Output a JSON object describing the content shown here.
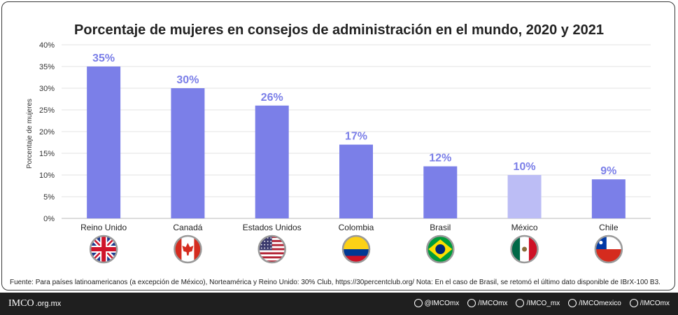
{
  "title": "Porcentaje de mujeres en consejos de administración en el mundo, 2020 y 2021",
  "source": "Fuente: Para países latinoamericanos (a excepción de México), Norteamérica y Reino Unido: 30% Club, https://30percentclub.org/ Nota: En el caso de Brasil, se retomó el último dato disponible de IBrX-100 B3.",
  "colors": {
    "bar": "#7b7fe8",
    "bar_highlight": "#bcbdf5",
    "label": "#7b7fe8"
  },
  "chart_data": {
    "type": "bar",
    "ylabel": "Porcentaje de mujeres",
    "ylim": [
      0,
      40
    ],
    "yticks": [
      "0%",
      "5%",
      "10%",
      "15%",
      "20%",
      "25%",
      "30%",
      "35%",
      "40%"
    ],
    "categories": [
      "Reino Unido",
      "Canadá",
      "Estados Unidos",
      "Colombia",
      "Brasil",
      "México",
      "Chile"
    ],
    "values": [
      35,
      30,
      26,
      17,
      12,
      10,
      9
    ],
    "data_labels": [
      "35%",
      "30%",
      "26%",
      "17%",
      "12%",
      "10%",
      "9%"
    ],
    "highlight": "México",
    "flags": [
      "uk-flag-icon",
      "canada-flag-icon",
      "usa-flag-icon",
      "colombia-flag-icon",
      "brazil-flag-icon",
      "mexico-flag-icon",
      "chile-flag-icon"
    ],
    "grid": true
  },
  "footer": {
    "logo": "IMCO",
    "domain": ".org.mx",
    "socials": [
      {
        "icon": "twitter-icon",
        "text": "@IMCOmx"
      },
      {
        "icon": "facebook-icon",
        "text": "/IMCOmx"
      },
      {
        "icon": "instagram-icon",
        "text": "/IMCO_mx"
      },
      {
        "icon": "youtube-icon",
        "text": "/IMCOmexico"
      },
      {
        "icon": "linkedin-icon",
        "text": "/IMCOmx"
      }
    ]
  }
}
